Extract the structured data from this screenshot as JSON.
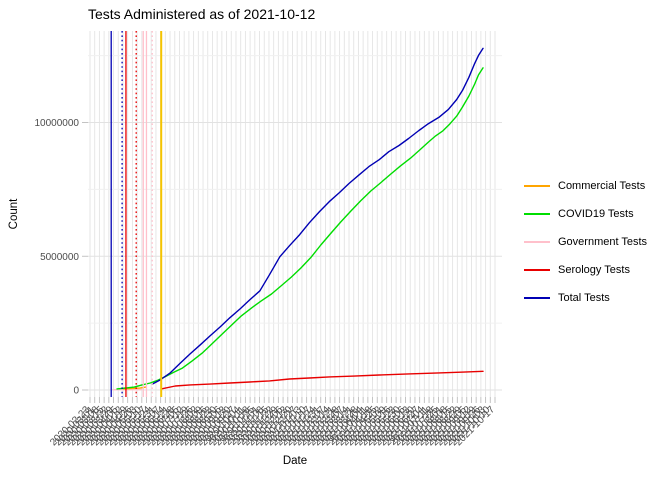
{
  "title": "Tests Administered as of 2021-10-12",
  "axes": {
    "x": {
      "label": "Date",
      "tick_start": "2020-02-23",
      "tick_count": 87,
      "tick_interval_days": 7,
      "tick_angle_deg": 45,
      "note": "weekly date tick labels, rotated 45 degrees, heavily overlapping"
    },
    "y": {
      "label": "Count",
      "ticks": [
        {
          "label": "0",
          "value": 0
        },
        {
          "label": "5000000",
          "value": 5000000
        },
        {
          "label": "10000000",
          "value": 10000000
        }
      ],
      "minor_tick_values": [
        2500000,
        7500000,
        12500000
      ]
    }
  },
  "legend": {
    "items": [
      {
        "label": "Commercial Tests",
        "color": "#ffa500"
      },
      {
        "label": "COVID19 Tests",
        "color": "#00dd00"
      },
      {
        "label": "Government Tests",
        "color": "#ffc0cb"
      },
      {
        "label": "Serology Tests",
        "color": "#e80000"
      },
      {
        "label": "Total Tests",
        "color": "#0000b4"
      }
    ]
  },
  "chart_data": {
    "type": "line",
    "title": "Tests Administered as of 2021-10-12",
    "xlabel": "Date",
    "ylabel": "Count",
    "x_range": [
      "2020-03-06",
      "2021-10-12"
    ],
    "ylim": [
      0,
      13400000
    ],
    "grid": true,
    "legend_position": "right",
    "series": [
      {
        "name": "Government Tests",
        "color": "#ffc0cb",
        "points": [
          [
            "2020-03-14",
            10000
          ],
          [
            "2020-04-07",
            10000
          ],
          [
            "2020-04-27",
            10000
          ]
        ]
      },
      {
        "name": "Commercial Tests",
        "color": "#ffa500",
        "points": [
          [
            "2020-03-30",
            40000
          ],
          [
            "2020-04-13",
            60000
          ],
          [
            "2020-04-25",
            70000
          ],
          [
            "2020-05-04",
            110000
          ]
        ]
      },
      {
        "name": "Serology Tests",
        "color": "#e80000",
        "points": [
          [
            "2020-05-28",
            40000
          ],
          [
            "2020-06-19",
            150000
          ],
          [
            "2020-07-12",
            190000
          ],
          [
            "2020-08-12",
            220000
          ],
          [
            "2020-09-12",
            260000
          ],
          [
            "2020-10-13",
            300000
          ],
          [
            "2020-11-13",
            340000
          ],
          [
            "2020-12-14",
            410000
          ],
          [
            "2021-01-14",
            450000
          ],
          [
            "2021-02-14",
            490000
          ],
          [
            "2021-03-25",
            520000
          ],
          [
            "2021-05-03",
            560000
          ],
          [
            "2021-06-18",
            600000
          ],
          [
            "2021-08-04",
            640000
          ],
          [
            "2021-09-12",
            670000
          ],
          [
            "2021-10-12",
            700000
          ]
        ]
      },
      {
        "name": "COVID19 Tests",
        "color": "#00dd00",
        "points": [
          [
            "2020-03-20",
            40000
          ],
          [
            "2020-04-03",
            75000
          ],
          [
            "2020-04-16",
            110000
          ],
          [
            "2020-04-28",
            190000
          ],
          [
            "2020-05-11",
            260000
          ],
          [
            "2020-05-23",
            370000
          ],
          [
            "2020-06-05",
            520000
          ],
          [
            "2020-06-17",
            670000
          ],
          [
            "2020-06-30",
            820000
          ],
          [
            "2020-07-15",
            1080000
          ],
          [
            "2020-07-31",
            1380000
          ],
          [
            "2020-08-15",
            1720000
          ],
          [
            "2020-08-31",
            2090000
          ],
          [
            "2020-09-15",
            2430000
          ],
          [
            "2020-09-30",
            2770000
          ],
          [
            "2020-10-16",
            3070000
          ],
          [
            "2020-10-31",
            3330000
          ],
          [
            "2020-11-16",
            3590000
          ],
          [
            "2020-12-01",
            3890000
          ],
          [
            "2020-12-17",
            4220000
          ],
          [
            "2021-01-01",
            4560000
          ],
          [
            "2021-01-17",
            4970000
          ],
          [
            "2021-02-01",
            5420000
          ],
          [
            "2021-02-17",
            5870000
          ],
          [
            "2021-03-04",
            6280000
          ],
          [
            "2021-03-20",
            6690000
          ],
          [
            "2021-04-04",
            7070000
          ],
          [
            "2021-04-20",
            7440000
          ],
          [
            "2021-05-05",
            7740000
          ],
          [
            "2021-05-21",
            8070000
          ],
          [
            "2021-06-05",
            8370000
          ],
          [
            "2021-06-21",
            8670000
          ],
          [
            "2021-07-07",
            9010000
          ],
          [
            "2021-07-19",
            9270000
          ],
          [
            "2021-07-30",
            9500000
          ],
          [
            "2021-08-10",
            9680000
          ],
          [
            "2021-08-21",
            9940000
          ],
          [
            "2021-09-01",
            10240000
          ],
          [
            "2021-09-10",
            10580000
          ],
          [
            "2021-09-20",
            10990000
          ],
          [
            "2021-09-29",
            11440000
          ],
          [
            "2021-10-05",
            11780000
          ],
          [
            "2021-10-12",
            12040000
          ]
        ]
      },
      {
        "name": "Total Tests",
        "color": "#0000b4",
        "points": [
          [
            "2020-05-14",
            220000
          ],
          [
            "2020-05-26",
            370000
          ],
          [
            "2020-06-11",
            640000
          ],
          [
            "2020-06-27",
            1010000
          ],
          [
            "2020-07-12",
            1350000
          ],
          [
            "2020-07-28",
            1690000
          ],
          [
            "2020-08-12",
            2020000
          ],
          [
            "2020-08-28",
            2360000
          ],
          [
            "2020-09-12",
            2700000
          ],
          [
            "2020-09-28",
            3030000
          ],
          [
            "2020-10-13",
            3370000
          ],
          [
            "2020-10-29",
            3710000
          ],
          [
            "2020-11-13",
            4310000
          ],
          [
            "2020-11-29",
            4980000
          ],
          [
            "2020-12-14",
            5390000
          ],
          [
            "2020-12-30",
            5810000
          ],
          [
            "2021-01-14",
            6250000
          ],
          [
            "2021-01-30",
            6670000
          ],
          [
            "2021-02-14",
            7040000
          ],
          [
            "2021-03-02",
            7380000
          ],
          [
            "2021-03-17",
            7720000
          ],
          [
            "2021-04-02",
            8050000
          ],
          [
            "2021-04-17",
            8350000
          ],
          [
            "2021-05-03",
            8610000
          ],
          [
            "2021-05-18",
            8910000
          ],
          [
            "2021-06-03",
            9140000
          ],
          [
            "2021-06-18",
            9400000
          ],
          [
            "2021-07-04",
            9700000
          ],
          [
            "2021-07-19",
            9960000
          ],
          [
            "2021-08-04",
            10190000
          ],
          [
            "2021-08-19",
            10490000
          ],
          [
            "2021-09-01",
            10860000
          ],
          [
            "2021-09-10",
            11200000
          ],
          [
            "2021-09-20",
            11690000
          ],
          [
            "2021-09-29",
            12210000
          ],
          [
            "2021-10-05",
            12510000
          ],
          [
            "2021-10-12",
            12770000
          ]
        ]
      }
    ],
    "vlines": [
      {
        "color": "#0000b4",
        "style": "solid",
        "date": "2020-03-11"
      },
      {
        "color": "#0000b4",
        "style": "dotted",
        "date": "2020-03-28"
      },
      {
        "color": "#e80000",
        "style": "solid",
        "date": "2020-04-03"
      },
      {
        "color": "#e80000",
        "style": "dotted",
        "date": "2020-04-19"
      },
      {
        "color": "#ffc0cb",
        "style": "solid",
        "date": "2020-04-30"
      },
      {
        "color": "#ffc0cb",
        "style": "solid",
        "date": "2020-05-05"
      },
      {
        "color": "#ffc0cb",
        "style": "dotted",
        "date": "2020-05-14"
      },
      {
        "color": "#f5c400",
        "style": "solid",
        "date": "2020-05-28"
      }
    ]
  }
}
